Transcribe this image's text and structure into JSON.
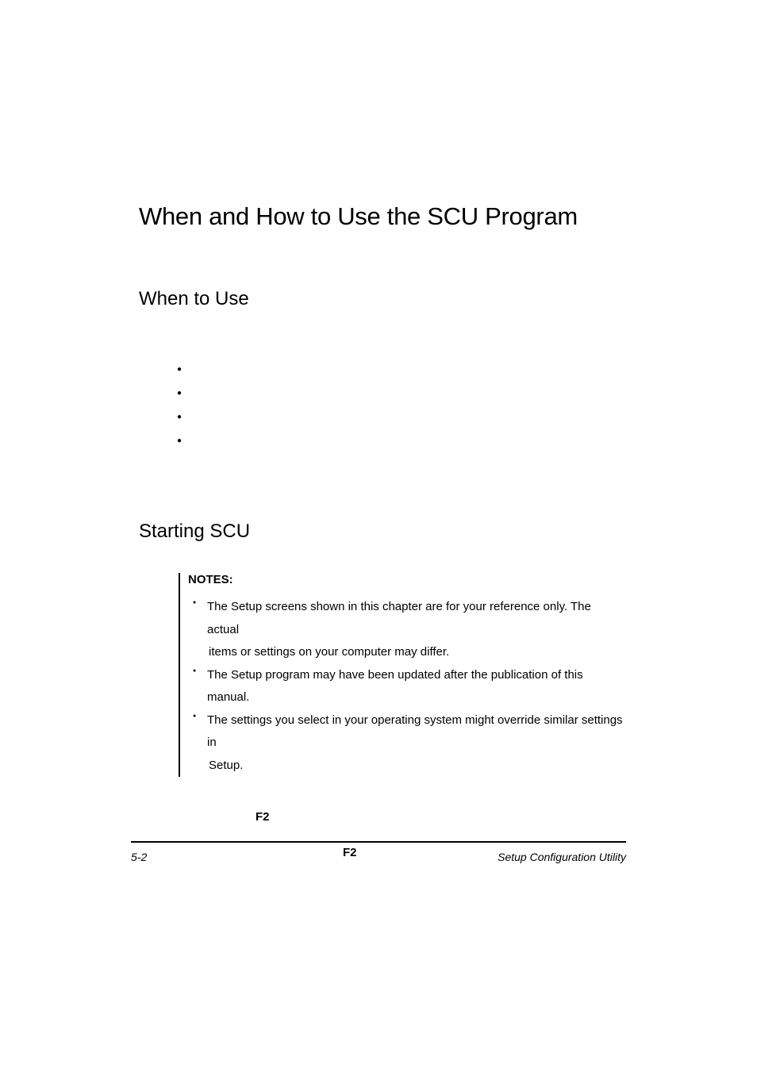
{
  "document": {
    "main_title": "When and How to Use the SCU Program",
    "sections": {
      "when_to_use": {
        "title": "When to Use"
      },
      "starting_scu": {
        "title": "Starting SCU",
        "notes": {
          "heading": "NOTES:",
          "items": [
            {
              "line1": "The Setup screens shown in this chapter are for your reference only. The actual",
              "line2": "items or settings on your computer may differ."
            },
            {
              "line1": "The Setup program may have been updated after the publication of this manual.",
              "line2": ""
            },
            {
              "line1": "The settings you select in your operating system might override similar settings in",
              "line2": "Setup."
            }
          ]
        },
        "keys": {
          "f2_1": "F2",
          "f2_2": "F2"
        }
      }
    },
    "footer": {
      "page_number": "5-2",
      "title": "Setup Configuration Utility"
    },
    "colors": {
      "background": "#ffffff",
      "text": "#000000",
      "rule": "#000000"
    },
    "typography": {
      "main_title_fontsize": 31,
      "section_title_fontsize": 24,
      "body_fontsize": 15,
      "footer_fontsize": 14,
      "font_family": "Arial"
    }
  }
}
